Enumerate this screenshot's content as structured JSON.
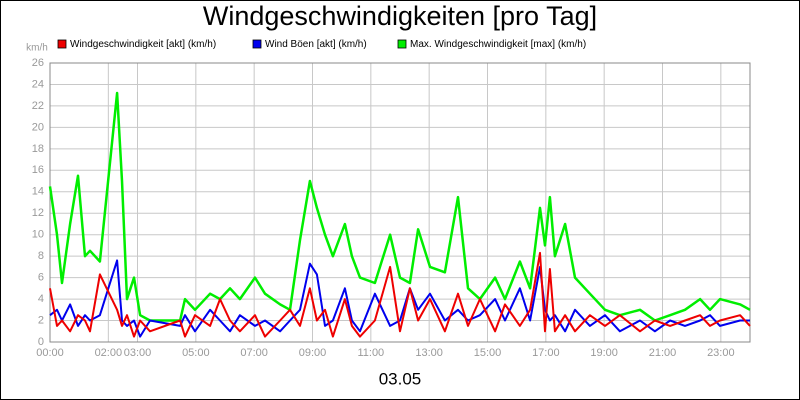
{
  "chart_data": {
    "type": "line",
    "title": "Windgeschwindigkeiten [pro Tag]",
    "ylabel": "km/h",
    "xlabel": "03.05",
    "xlim": [
      0,
      24
    ],
    "ylim": [
      0,
      26
    ],
    "yticks": [
      0,
      2,
      4,
      6,
      8,
      10,
      12,
      14,
      16,
      18,
      20,
      22,
      24,
      26
    ],
    "xticks": [
      {
        "value": 0,
        "label": "00:00"
      },
      {
        "value": 2,
        "label": "02:00"
      },
      {
        "value": 3,
        "label": "03:00"
      },
      {
        "value": 5,
        "label": "05:00"
      },
      {
        "value": 7,
        "label": "07:00"
      },
      {
        "value": 9,
        "label": "09:00"
      },
      {
        "value": 11,
        "label": "11:00"
      },
      {
        "value": 13,
        "label": "13:00"
      },
      {
        "value": 15,
        "label": "15:00"
      },
      {
        "value": 17,
        "label": "17:00"
      },
      {
        "value": 19,
        "label": "19:00"
      },
      {
        "value": 21,
        "label": "21:00"
      },
      {
        "value": 23,
        "label": "23:00"
      }
    ],
    "grid": true,
    "x": [
      0,
      0.24,
      0.41,
      0.69,
      0.96,
      1.2,
      1.37,
      1.71,
      2.3,
      2.47,
      2.64,
      2.88,
      3.09,
      3.43,
      4.46,
      4.63,
      4.97,
      5.49,
      5.83,
      6.17,
      6.51,
      7.03,
      7.37,
      7.89,
      8.23,
      8.57,
      8.91,
      9.15,
      9.43,
      9.7,
      10.11,
      10.35,
      10.63,
      11.14,
      11.66,
      12,
      12.34,
      12.62,
      13.03,
      13.54,
      13.99,
      14.33,
      14.74,
      15.26,
      15.6,
      16.11,
      16.46,
      16.8,
      16.97,
      17.14,
      17.31,
      17.66,
      18,
      18.51,
      19.03,
      19.54,
      20.23,
      20.74,
      21.26,
      21.77,
      22.29,
      22.63,
      22.97,
      23.66,
      24
    ],
    "series": [
      {
        "name": "Max. Windgeschwindigkeit [max] (km/h)",
        "color": "#00ee00",
        "width": 2.5,
        "values": [
          14.5,
          10,
          5.5,
          11,
          15.5,
          8,
          8.5,
          7.5,
          23.2,
          15,
          4,
          6,
          2.5,
          2,
          2,
          4,
          3,
          4.5,
          4,
          5,
          4,
          6,
          4.5,
          3.5,
          3,
          9.5,
          15,
          12.5,
          10,
          8,
          11,
          8,
          6,
          5.5,
          10,
          6,
          5.5,
          10.5,
          7,
          6.5,
          13.5,
          5,
          4,
          6,
          4,
          7.5,
          5,
          12.5,
          9,
          13.5,
          8,
          11,
          6,
          4.5,
          3,
          2.5,
          3,
          2,
          2.5,
          3,
          4,
          3,
          4,
          3.5,
          3
        ]
      },
      {
        "name": "Wind Böen [akt] (km/h)",
        "color": "#0000ee",
        "width": 2,
        "values": [
          2.5,
          3,
          2,
          3.5,
          1.5,
          2.5,
          2,
          2.5,
          7.6,
          2,
          1.5,
          2,
          0.5,
          2,
          1.5,
          2.5,
          1,
          3,
          2,
          1,
          2.5,
          1.5,
          2,
          1,
          2,
          3,
          7.3,
          6.3,
          1.5,
          2,
          5,
          2,
          1,
          4.5,
          1.5,
          2,
          5,
          3,
          4.5,
          2,
          3,
          2,
          2.5,
          4,
          2,
          5,
          2,
          7,
          3,
          2,
          2.5,
          1,
          3,
          1.5,
          2.5,
          1,
          2,
          1,
          2,
          1.5,
          2,
          2.5,
          1.5,
          2,
          2
        ]
      },
      {
        "name": "Windgeschwindigkeit [akt] (km/h)",
        "color": "#ee0000",
        "width": 2,
        "values": [
          5,
          1.5,
          2,
          1,
          2.5,
          2,
          1,
          6.3,
          3,
          1.5,
          2.5,
          0.5,
          2,
          1,
          2,
          0.5,
          2.5,
          1.5,
          4,
          2,
          1,
          2.5,
          0.5,
          2,
          3,
          1.5,
          5,
          2,
          3,
          0.5,
          4,
          1.5,
          0.5,
          2,
          7,
          1,
          5,
          2,
          4,
          1,
          4.5,
          1.5,
          4,
          1,
          3.5,
          1.5,
          3,
          8.3,
          1,
          6.8,
          1,
          2.5,
          1,
          2.5,
          1.5,
          2.5,
          1,
          2,
          1.5,
          2,
          2.5,
          1.5,
          2,
          2.5,
          1.5
        ]
      }
    ],
    "legend_order": [
      2,
      1,
      0
    ]
  }
}
